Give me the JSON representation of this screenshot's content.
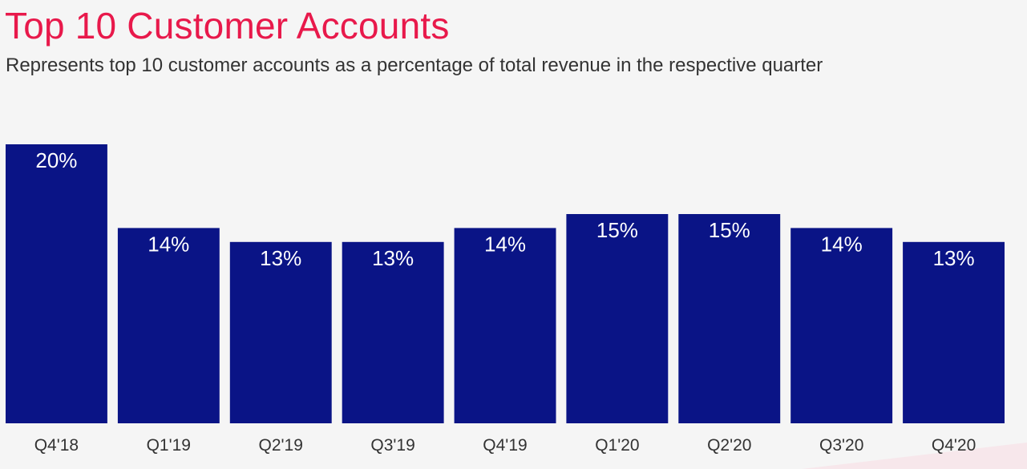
{
  "title": "Top 10 Customer Accounts",
  "subtitle": "Represents top 10 customer accounts as a percentage of total revenue in the respective quarter",
  "colors": {
    "bar": "#0a1486",
    "title": "#e8194b",
    "bar_label": "#ffffff",
    "tick_label": "#333333",
    "background": "#f5f5f5"
  },
  "chart_data": {
    "type": "bar",
    "title": "Top 10 Customer Accounts",
    "subtitle": "Represents top 10 customer accounts as a percentage of total revenue in the respective quarter",
    "categories": [
      "Q4'18",
      "Q1'19",
      "Q2'19",
      "Q3'19",
      "Q4'19",
      "Q1'20",
      "Q2'20",
      "Q3'20",
      "Q4'20"
    ],
    "values": [
      20,
      14,
      13,
      13,
      14,
      15,
      15,
      14,
      13
    ],
    "data_labels": [
      "20%",
      "14%",
      "13%",
      "13%",
      "14%",
      "15%",
      "15%",
      "14%",
      "13%"
    ],
    "unit": "%",
    "xlabel": "",
    "ylabel": "",
    "ylim": [
      0,
      20
    ],
    "grid": false,
    "legend": "none"
  }
}
